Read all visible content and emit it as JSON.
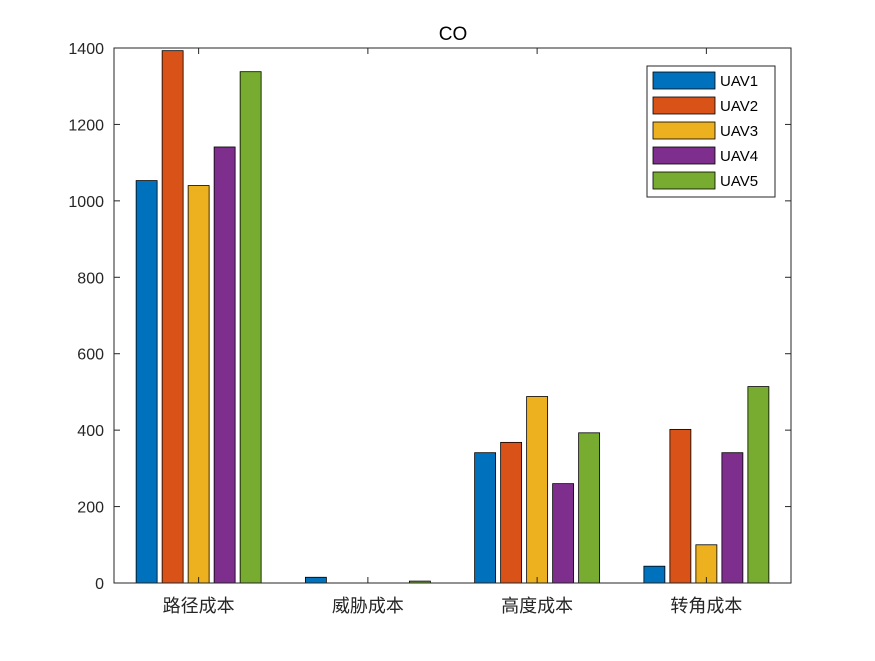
{
  "chart_data": {
    "type": "bar",
    "title": "CO",
    "xlabel": "",
    "ylabel": "",
    "categories": [
      "路径成本",
      "威胁成本",
      "高度成本",
      "转角成本"
    ],
    "ylim": [
      0,
      1400
    ],
    "yticks": [
      0,
      200,
      400,
      600,
      800,
      1000,
      1200,
      1400
    ],
    "grid": false,
    "legend_position": "top-right",
    "series": [
      {
        "name": "UAV1",
        "color": "#0072BD",
        "values": [
          1053,
          15,
          341,
          44
        ]
      },
      {
        "name": "UAV2",
        "color": "#D95319",
        "values": [
          1393,
          0,
          368,
          402
        ]
      },
      {
        "name": "UAV3",
        "color": "#EDB120",
        "values": [
          1040,
          0,
          488,
          100
        ]
      },
      {
        "name": "UAV4",
        "color": "#7E2F8E",
        "values": [
          1141,
          0,
          260,
          341
        ]
      },
      {
        "name": "UAV5",
        "color": "#77AC30",
        "values": [
          1338,
          5,
          393,
          514
        ]
      }
    ]
  }
}
